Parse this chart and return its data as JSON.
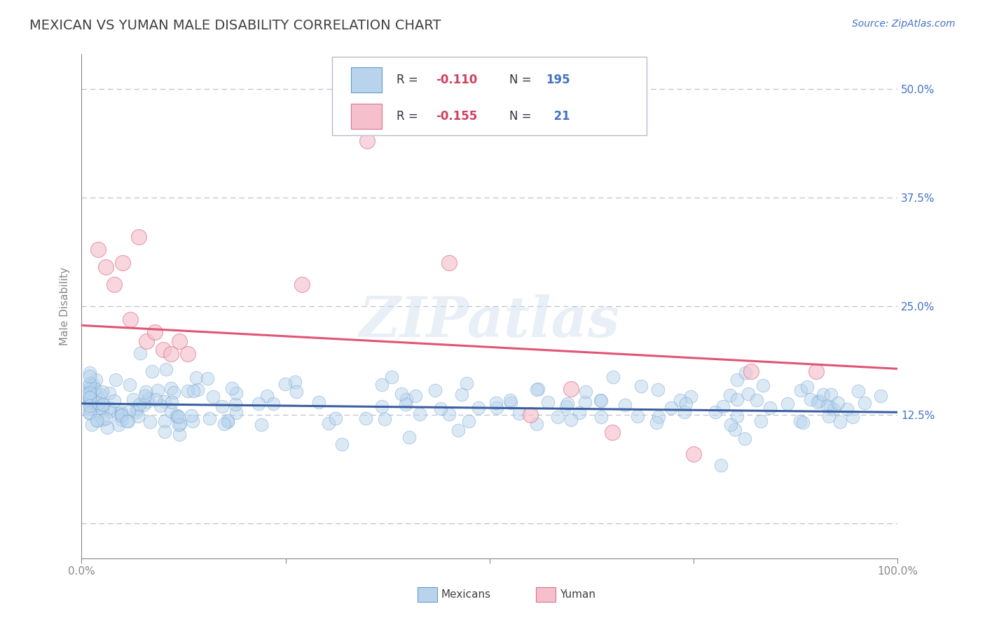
{
  "title": "MEXICAN VS YUMAN MALE DISABILITY CORRELATION CHART",
  "source_text": "Source: ZipAtlas.com",
  "ylabel": "Male Disability",
  "xlim": [
    0,
    1.0
  ],
  "ylim": [
    -0.04,
    0.54
  ],
  "yticks": [
    0.0,
    0.125,
    0.25,
    0.375,
    0.5
  ],
  "ytick_labels": [
    "",
    "12.5%",
    "25.0%",
    "37.5%",
    "50.0%"
  ],
  "xticks": [
    0.0,
    0.25,
    0.5,
    0.75,
    1.0
  ],
  "xtick_labels": [
    "0.0%",
    "",
    "",
    "",
    "100.0%"
  ],
  "series": [
    {
      "name": "Mexicans",
      "color": "#b8d4ed",
      "edge_color": "#6699cc",
      "R": -0.11,
      "N": 195,
      "trend_color": "#3a5fa0",
      "trend_start_y": 0.138,
      "trend_end_y": 0.128
    },
    {
      "name": "Yuman",
      "color": "#f5c0cc",
      "edge_color": "#e07090",
      "R": -0.155,
      "N": 21,
      "trend_color": "#e05575",
      "trend_start_y": 0.228,
      "trend_end_y": 0.178
    }
  ],
  "legend_r_color": "#d04060",
  "legend_n_color": "#4472c4",
  "watermark": "ZIPatlas",
  "background_color": "#ffffff",
  "grid_color": "#c0c0d0",
  "axis_color": "#888888",
  "title_color": "#404040",
  "right_label_color": "#4472c4"
}
